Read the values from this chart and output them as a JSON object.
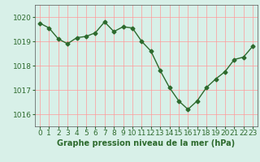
{
  "x": [
    0,
    1,
    2,
    3,
    4,
    5,
    6,
    7,
    8,
    9,
    10,
    11,
    12,
    13,
    14,
    15,
    16,
    17,
    18,
    19,
    20,
    21,
    22,
    23
  ],
  "y": [
    1019.75,
    1019.55,
    1019.1,
    1018.9,
    1019.15,
    1019.2,
    1019.35,
    1019.8,
    1019.4,
    1019.6,
    1019.55,
    1019.0,
    1018.6,
    1017.8,
    1017.1,
    1016.55,
    1016.2,
    1016.55,
    1017.1,
    1017.45,
    1017.75,
    1018.25,
    1018.35,
    1018.8
  ],
  "line_color": "#2d6a2d",
  "marker": "D",
  "marker_size": 2.5,
  "bg_color": "#d8f0e8",
  "grid_color": "#ff9999",
  "axis_bg": "#d8f0e8",
  "xlabel": "Graphe pression niveau de la mer (hPa)",
  "xlabel_fontsize": 7,
  "xlabel_color": "#2d6a2d",
  "tick_label_color": "#2d6a2d",
  "tick_fontsize": 6.5,
  "ylim": [
    1015.5,
    1020.5
  ],
  "yticks": [
    1016,
    1017,
    1018,
    1019,
    1020
  ],
  "xlim": [
    -0.5,
    23.5
  ],
  "xticks": [
    0,
    1,
    2,
    3,
    4,
    5,
    6,
    7,
    8,
    9,
    10,
    11,
    12,
    13,
    14,
    15,
    16,
    17,
    18,
    19,
    20,
    21,
    22,
    23
  ]
}
